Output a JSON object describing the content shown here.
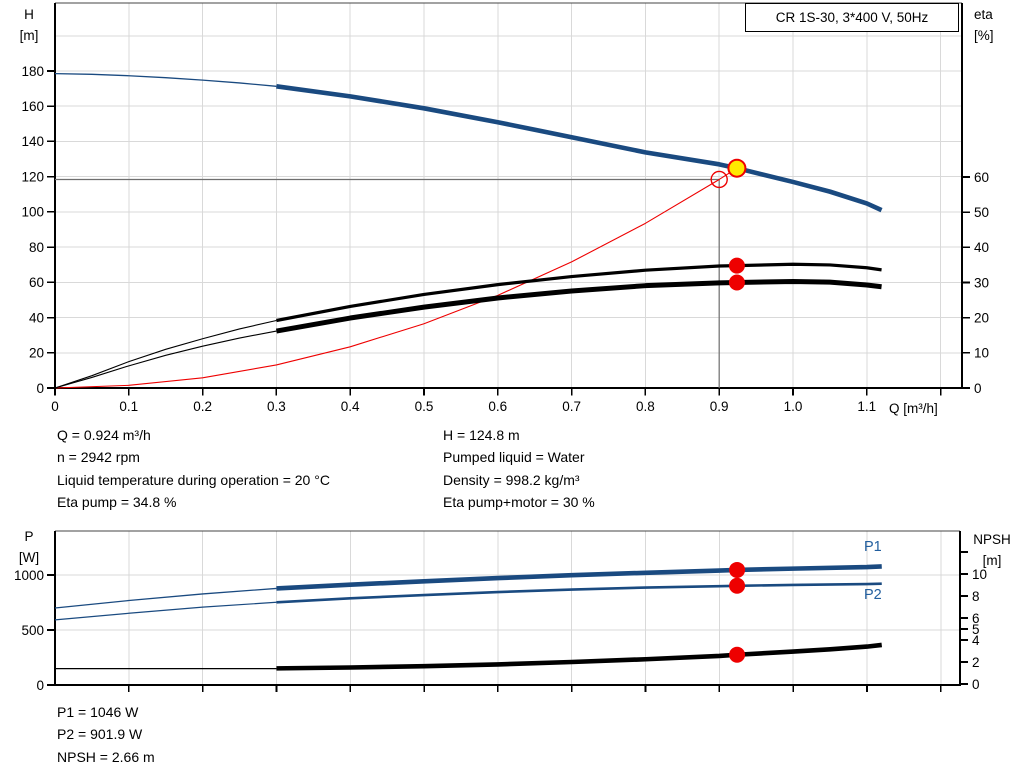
{
  "title_box": "CR 1S-30, 3*400 V, 50Hz",
  "axis_labels": {
    "top_left": [
      "H",
      "[m]"
    ],
    "top_right": [
      "eta",
      "[%]"
    ],
    "x_unit": "Q [m³/h]",
    "bottom_left": [
      "P",
      "[W]"
    ],
    "bottom_right": [
      "NPSH",
      "[m]"
    ]
  },
  "curve_labels": {
    "p1": "P1",
    "p2": "P2"
  },
  "info_top_left": [
    "Q = 0.924 m³/h",
    "n = 2942 rpm",
    "Liquid temperature during operation = 20 °C",
    "Eta pump = 34.8 %"
  ],
  "info_top_right": [
    "H = 124.8 m",
    "Pumped liquid = Water",
    "Density = 998.2 kg/m³",
    "Eta pump+motor = 30 %"
  ],
  "info_bottom": [
    "P1 = 1046 W",
    "P2 = 901.9 W",
    "NPSH = 2.66 m"
  ],
  "colors": {
    "curve_blue": "#1a4a80",
    "label_blue": "#215e9e",
    "red": "#ee0000",
    "yellow": "#ffe800",
    "grid": "#d9d9d9",
    "duty_line": "#6e6e6e",
    "axis": "#000000"
  },
  "chart_data": [
    {
      "id": "head-efficiency-chart",
      "type": "line",
      "title": "CR 1S-30, 3*400 V, 50Hz",
      "x": {
        "label": "Q [m³/h]",
        "min": 0,
        "max": 1.229,
        "ticks": [
          [
            0,
            "0"
          ],
          [
            0.1,
            "0.1"
          ],
          [
            0.2,
            "0.2"
          ],
          [
            0.3,
            "0.3"
          ],
          [
            0.4,
            "0.4"
          ],
          [
            0.5,
            "0.5"
          ],
          [
            0.6,
            "0.6"
          ],
          [
            0.7,
            "0.7"
          ],
          [
            0.8,
            "0.8"
          ],
          [
            0.9,
            "0.9"
          ],
          [
            1.0,
            "1.0"
          ],
          [
            1.1,
            "1.1"
          ],
          [
            1.2,
            ""
          ]
        ],
        "grid": [
          0.1,
          0.2,
          0.3,
          0.4,
          0.5,
          0.6,
          0.7,
          0.8,
          0.9,
          1.0,
          1.1,
          1.2
        ]
      },
      "left": {
        "label": "H [m]",
        "min": 0,
        "max": 218.6,
        "ticks": [
          [
            0,
            "0"
          ],
          [
            20,
            "20"
          ],
          [
            40,
            "40"
          ],
          [
            60,
            "60"
          ],
          [
            80,
            "80"
          ],
          [
            100,
            "100"
          ],
          [
            120,
            "120"
          ],
          [
            140,
            "140"
          ],
          [
            160,
            "160"
          ],
          [
            180,
            "180"
          ]
        ],
        "grid": [
          20,
          40,
          60,
          80,
          100,
          120,
          140,
          160,
          180,
          200
        ]
      },
      "right": {
        "label": "eta [%]",
        "min": 0,
        "max": 109.5,
        "ticks": [
          [
            0,
            "0"
          ],
          [
            10,
            "10"
          ],
          [
            20,
            "20"
          ],
          [
            30,
            "30"
          ],
          [
            40,
            "40"
          ],
          [
            50,
            "50"
          ],
          [
            60,
            "60"
          ]
        ]
      },
      "duty_ref": {
        "q": 0.9,
        "h": 118.4
      },
      "series": [
        {
          "name": "h-q-curve-thin",
          "axis": "left",
          "color": "#1a4a80",
          "width": 1.3,
          "points": [
            [
              0,
              178.5
            ],
            [
              0.05,
              178.1
            ],
            [
              0.1,
              177.3
            ],
            [
              0.15,
              176.2
            ],
            [
              0.2,
              174.8
            ],
            [
              0.25,
              173.2
            ],
            [
              0.3,
              171.3
            ]
          ]
        },
        {
          "name": "h-q-curve",
          "axis": "left",
          "color": "#1a4a80",
          "width": 4.6,
          "points": [
            [
              0.3,
              171.3
            ],
            [
              0.4,
              165.6
            ],
            [
              0.5,
              158.8
            ],
            [
              0.6,
              150.9
            ],
            [
              0.7,
              142.4
            ],
            [
              0.8,
              133.8
            ],
            [
              0.9,
              127.0
            ],
            [
              0.924,
              124.8
            ],
            [
              1.0,
              117.0
            ],
            [
              1.05,
              111.5
            ],
            [
              1.1,
              104.8
            ],
            [
              1.12,
              101.0
            ]
          ]
        },
        {
          "name": "system-curve",
          "axis": "left",
          "color": "#ee0000",
          "width": 1.1,
          "points": [
            [
              0,
              0
            ],
            [
              0.1,
              1.5
            ],
            [
              0.2,
              5.8
            ],
            [
              0.3,
              13.1
            ],
            [
              0.4,
              23.4
            ],
            [
              0.5,
              36.5
            ],
            [
              0.6,
              52.6
            ],
            [
              0.7,
              71.6
            ],
            [
              0.8,
              93.5
            ],
            [
              0.9,
              118.4
            ],
            [
              0.924,
              124.8
            ]
          ]
        },
        {
          "name": "eta-pump-curve-thin",
          "axis": "right",
          "color": "#000000",
          "width": 1.1,
          "points": [
            [
              0,
              0
            ],
            [
              0.05,
              3.5
            ],
            [
              0.1,
              7.5
            ],
            [
              0.15,
              11.0
            ],
            [
              0.2,
              14.0
            ],
            [
              0.25,
              16.8
            ],
            [
              0.3,
              19.2
            ]
          ]
        },
        {
          "name": "eta-pump-curve",
          "axis": "right",
          "color": "#000000",
          "width": 3.2,
          "points": [
            [
              0.3,
              19.2
            ],
            [
              0.4,
              23.2
            ],
            [
              0.5,
              26.6
            ],
            [
              0.6,
              29.4
            ],
            [
              0.7,
              31.7
            ],
            [
              0.8,
              33.5
            ],
            [
              0.9,
              34.7
            ],
            [
              0.924,
              34.8
            ],
            [
              1.0,
              35.2
            ],
            [
              1.05,
              35.0
            ],
            [
              1.1,
              34.2
            ],
            [
              1.12,
              33.6
            ]
          ]
        },
        {
          "name": "eta-pump-motor-curve-thin",
          "axis": "right",
          "color": "#000000",
          "width": 1.1,
          "points": [
            [
              0,
              0
            ],
            [
              0.05,
              3.0
            ],
            [
              0.1,
              6.3
            ],
            [
              0.15,
              9.3
            ],
            [
              0.2,
              11.9
            ],
            [
              0.25,
              14.2
            ],
            [
              0.3,
              16.2
            ]
          ]
        },
        {
          "name": "eta-pump-motor-curve",
          "axis": "right",
          "color": "#000000",
          "width": 5,
          "points": [
            [
              0.3,
              16.2
            ],
            [
              0.4,
              19.9
            ],
            [
              0.5,
              23.0
            ],
            [
              0.6,
              25.6
            ],
            [
              0.7,
              27.6
            ],
            [
              0.8,
              29.1
            ],
            [
              0.9,
              29.9
            ],
            [
              0.924,
              30.0
            ],
            [
              1.0,
              30.3
            ],
            [
              1.05,
              30.1
            ],
            [
              1.1,
              29.3
            ],
            [
              1.12,
              28.8
            ]
          ]
        }
      ],
      "markers": [
        {
          "name": "duty-point-marker",
          "type": "open",
          "axis": "left",
          "q": 0.9,
          "v": 118.4,
          "r": 8,
          "stroke": "#ee0000"
        },
        {
          "name": "operating-point-marker",
          "type": "filled",
          "axis": "left",
          "q": 0.924,
          "v": 124.8,
          "r": 8.5,
          "fill": "#ffe800",
          "stroke": "#ee0000",
          "sw": 2
        },
        {
          "name": "eta-pump-point",
          "type": "filled",
          "axis": "right",
          "q": 0.924,
          "v": 34.8,
          "r": 8,
          "fill": "#ee0000"
        },
        {
          "name": "eta-pump-motor-point",
          "type": "filled",
          "axis": "right",
          "q": 0.924,
          "v": 30.0,
          "r": 8,
          "fill": "#ee0000"
        }
      ]
    },
    {
      "id": "power-npsh-chart",
      "type": "line",
      "x": {
        "label": "",
        "min": 0,
        "max": 1.226,
        "ticks": [
          [
            0.1,
            ""
          ],
          [
            0.2,
            ""
          ],
          [
            0.3,
            ""
          ],
          [
            0.4,
            ""
          ],
          [
            0.5,
            ""
          ],
          [
            0.6,
            ""
          ],
          [
            0.7,
            ""
          ],
          [
            0.8,
            ""
          ],
          [
            0.9,
            ""
          ],
          [
            1.0,
            ""
          ],
          [
            1.1,
            ""
          ],
          [
            1.2,
            ""
          ]
        ],
        "grid": [
          0.1,
          0.2,
          0.3,
          0.4,
          0.5,
          0.6,
          0.7,
          0.8,
          0.9,
          1.0,
          1.1,
          1.2
        ]
      },
      "left": {
        "label": "P [W]",
        "min": 0,
        "max": 1400,
        "ticks": [
          [
            0,
            "0"
          ],
          [
            500,
            "500"
          ],
          [
            1000,
            "1000"
          ]
        ],
        "grid": [
          500,
          1000
        ]
      },
      "right": {
        "label": "NPSH [m]",
        "min": 0,
        "max": 13.91,
        "ticks": [
          [
            0,
            "0"
          ],
          [
            2,
            "2"
          ],
          [
            4,
            "4"
          ],
          [
            5,
            "5"
          ],
          [
            6,
            "6"
          ],
          [
            8,
            "8"
          ],
          [
            10,
            "10"
          ],
          [
            12,
            ""
          ]
        ]
      },
      "series": [
        {
          "name": "p1-curve-thin",
          "axis": "left",
          "color": "#1a4a80",
          "width": 1.3,
          "points": [
            [
              0,
              700
            ],
            [
              0.1,
              768
            ],
            [
              0.2,
              828
            ],
            [
              0.3,
              878
            ]
          ]
        },
        {
          "name": "p1-curve",
          "axis": "left",
          "color": "#1a4a80",
          "width": 4.6,
          "points": [
            [
              0.3,
              878
            ],
            [
              0.4,
              912
            ],
            [
              0.5,
              943
            ],
            [
              0.6,
              972
            ],
            [
              0.7,
              998
            ],
            [
              0.8,
              1020
            ],
            [
              0.9,
              1040
            ],
            [
              0.924,
              1046
            ],
            [
              1.0,
              1058
            ],
            [
              1.1,
              1072
            ],
            [
              1.12,
              1078
            ]
          ]
        },
        {
          "name": "p2-curve-thin",
          "axis": "left",
          "color": "#1a4a80",
          "width": 1.2,
          "points": [
            [
              0,
              592
            ],
            [
              0.1,
              652
            ],
            [
              0.2,
              708
            ],
            [
              0.3,
              752
            ]
          ]
        },
        {
          "name": "p2-curve",
          "axis": "left",
          "color": "#1a4a80",
          "width": 2.6,
          "points": [
            [
              0.3,
              752
            ],
            [
              0.4,
              788
            ],
            [
              0.5,
              818
            ],
            [
              0.6,
              845
            ],
            [
              0.7,
              868
            ],
            [
              0.8,
              886
            ],
            [
              0.9,
              898
            ],
            [
              0.924,
              902
            ],
            [
              1.0,
              910
            ],
            [
              1.1,
              918
            ],
            [
              1.12,
              921
            ]
          ]
        },
        {
          "name": "npsh-curve-thin",
          "axis": "right",
          "color": "#000000",
          "width": 1.2,
          "points": [
            [
              0,
              1.4
            ],
            [
              0.3,
              1.4
            ]
          ]
        },
        {
          "name": "npsh-curve",
          "axis": "right",
          "color": "#000000",
          "width": 4.6,
          "points": [
            [
              0.3,
              1.42
            ],
            [
              0.4,
              1.5
            ],
            [
              0.5,
              1.62
            ],
            [
              0.6,
              1.78
            ],
            [
              0.7,
              2.0
            ],
            [
              0.8,
              2.25
            ],
            [
              0.9,
              2.55
            ],
            [
              0.924,
              2.66
            ],
            [
              1.0,
              2.95
            ],
            [
              1.05,
              3.15
            ],
            [
              1.1,
              3.4
            ],
            [
              1.12,
              3.55
            ]
          ]
        }
      ],
      "markers": [
        {
          "name": "p1-point",
          "type": "filled",
          "axis": "left",
          "q": 0.924,
          "v": 1046,
          "r": 8,
          "fill": "#ee0000"
        },
        {
          "name": "p2-point",
          "type": "filled",
          "axis": "left",
          "q": 0.924,
          "v": 902,
          "r": 8,
          "fill": "#ee0000"
        },
        {
          "name": "npsh-point",
          "type": "filled",
          "axis": "right",
          "q": 0.924,
          "v": 2.66,
          "r": 8,
          "fill": "#ee0000"
        }
      ]
    }
  ]
}
